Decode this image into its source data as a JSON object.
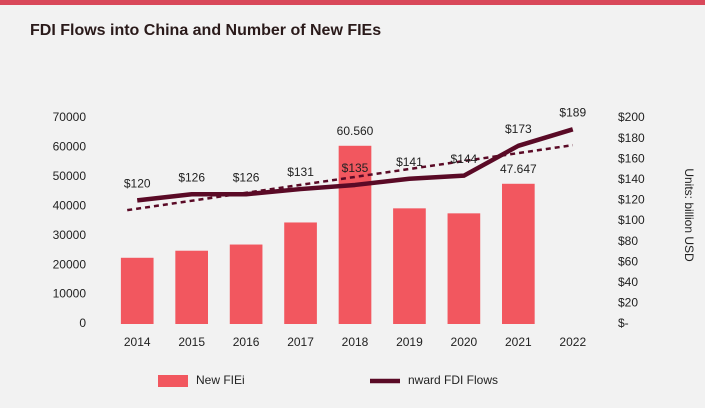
{
  "chart_data": {
    "type": "bar-line",
    "title": "FDI Flows into China and Number of New FIEs",
    "y2_label": "Units:  billion USD",
    "categories": [
      "2014",
      "2015",
      "2016",
      "2017",
      "2018",
      "2019",
      "2020",
      "2021",
      "2022"
    ],
    "series": [
      {
        "name": "New FIEi",
        "type": "bar",
        "color": "#f2575f",
        "values": [
          22500,
          24900,
          27000,
          34500,
          60560,
          39300,
          37600,
          47647,
          null
        ],
        "value_labels": [
          null,
          null,
          null,
          null,
          "60.560",
          null,
          null,
          "47.647",
          null
        ]
      },
      {
        "name": "nward FDI Flows",
        "type": "line",
        "axis": "y2",
        "color": "#5a0a26",
        "values": [
          120,
          126,
          126,
          131,
          135,
          141,
          144,
          173,
          189
        ],
        "value_labels": [
          "$120",
          "$126",
          "$126",
          "$131",
          "$135",
          "$141",
          "$144",
          "$173",
          "$189"
        ],
        "trendline": true
      }
    ],
    "ylim": [
      0,
      70000
    ],
    "yticks": [
      0,
      10000,
      20000,
      30000,
      40000,
      50000,
      60000,
      70000
    ],
    "y2lim": [
      0,
      200
    ],
    "y2ticks": [
      {
        "value": 0,
        "label": "$-"
      },
      {
        "value": 20,
        "label": "$20"
      },
      {
        "value": 40,
        "label": "$40"
      },
      {
        "value": 60,
        "label": "$60"
      },
      {
        "value": 80,
        "label": "$80"
      },
      {
        "value": 100,
        "label": "$100"
      },
      {
        "value": 120,
        "label": "$120"
      },
      {
        "value": 140,
        "label": "$140"
      },
      {
        "value": 160,
        "label": "$160"
      },
      {
        "value": 180,
        "label": "$180"
      },
      {
        "value": 200,
        "label": "$200"
      }
    ],
    "legend": "bottom"
  }
}
